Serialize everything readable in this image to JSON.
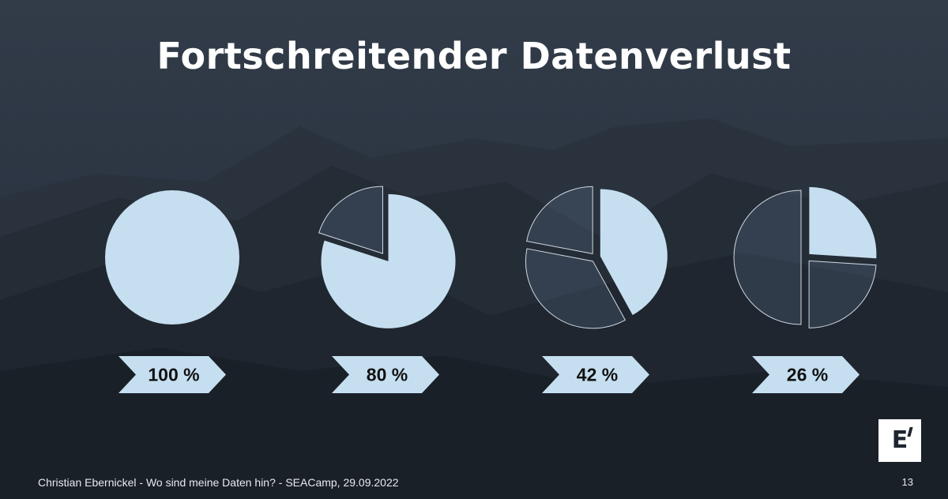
{
  "slide": {
    "title": "Fortschreitender Datenverlust",
    "footer": "Christian Ebernickel - Wo sind meine Daten hin? - SEACamp, 29.09.2022",
    "page_number": "13",
    "logo_text": "E"
  },
  "colors": {
    "kept": "#c6dff0",
    "lost": "rgba(110,135,170,0.22)",
    "lost_stroke": "#cfd8e3",
    "label_arrow": "#c6dff0",
    "label_text": "#111111",
    "title": "#ffffff"
  },
  "chart_data": [
    {
      "type": "pie",
      "label": "100 %",
      "remaining_percent": 100,
      "slices": [
        {
          "percent": 100,
          "state": "kept"
        }
      ]
    },
    {
      "type": "pie",
      "label": "80 %",
      "remaining_percent": 80,
      "slices": [
        {
          "percent": 80,
          "state": "kept"
        },
        {
          "percent": 20,
          "state": "lost"
        }
      ]
    },
    {
      "type": "pie",
      "label": "42 %",
      "remaining_percent": 42,
      "slices": [
        {
          "percent": 42,
          "state": "kept"
        },
        {
          "percent": 36,
          "state": "lost"
        },
        {
          "percent": 22,
          "state": "lost"
        }
      ]
    },
    {
      "type": "pie",
      "label": "26 %",
      "remaining_percent": 26,
      "slices": [
        {
          "percent": 26,
          "state": "kept"
        },
        {
          "percent": 24,
          "state": "lost"
        },
        {
          "percent": 50,
          "state": "lost"
        }
      ]
    }
  ]
}
